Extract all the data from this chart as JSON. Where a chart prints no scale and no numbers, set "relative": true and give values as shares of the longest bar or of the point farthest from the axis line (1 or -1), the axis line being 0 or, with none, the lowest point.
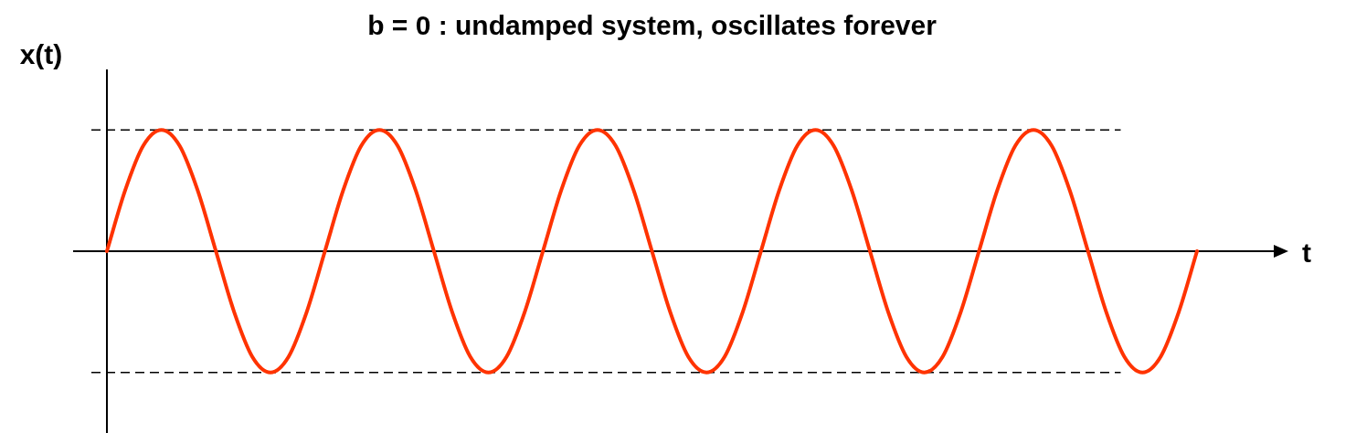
{
  "chart_data": {
    "type": "line",
    "title": "b = 0 : undamped system, oscillates forever",
    "xlabel": "t",
    "ylabel": "x(t)",
    "relative": true,
    "legend": false,
    "marker": "none",
    "categories": [
      null,
      null,
      null,
      null,
      null,
      null,
      null,
      null,
      null,
      null,
      null,
      null,
      null,
      null,
      null,
      null,
      null,
      null,
      null,
      null,
      null,
      null,
      null,
      null,
      null,
      null,
      null,
      null,
      null,
      null,
      null,
      null,
      null,
      null,
      null,
      null,
      null,
      null,
      null,
      null,
      null,
      null,
      null,
      null,
      null,
      null,
      null,
      null,
      null,
      null,
      null,
      null,
      null,
      null,
      null,
      null,
      null,
      null,
      null,
      null,
      null
    ],
    "series": [
      {
        "color": "#ff3300",
        "values": [
          0,
          0.5,
          0.87,
          1,
          0.87,
          0.5,
          0,
          -0.5,
          -0.87,
          -1,
          -0.87,
          -0.5,
          0,
          0.5,
          0.87,
          1,
          0.87,
          0.5,
          0,
          -0.5,
          -0.87,
          -1,
          -0.87,
          -0.5,
          0,
          0.5,
          0.87,
          1,
          0.87,
          0.5,
          0,
          -0.5,
          -0.87,
          -1,
          -0.87,
          -0.5,
          0,
          0.5,
          0.87,
          1,
          0.87,
          0.5,
          0,
          -0.5,
          -0.87,
          -1,
          -0.87,
          -0.5,
          0,
          0.5,
          0.87,
          1,
          0.87,
          0.5,
          0,
          -0.5,
          -0.87,
          -1,
          -0.87,
          -0.5,
          0
        ]
      }
    ],
    "ref_lines": [
      {
        "axis": "y",
        "value": 1,
        "color": "#000000",
        "line_style": "dashed"
      },
      {
        "axis": "y",
        "value": -1,
        "color": "#000000",
        "line_style": "dashed"
      }
    ]
  }
}
